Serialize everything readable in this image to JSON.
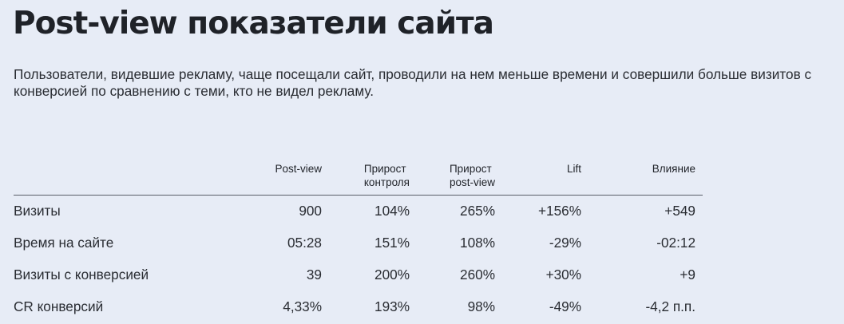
{
  "title": "Post-view показатели сайта",
  "description": "Пользователи, видевшие рекламу, чаще посещали сайт, проводили на нем меньше времени и совершили больше визитов с конверсией по сравнению с теми, кто не видел рекламу.",
  "table": {
    "columns": [
      "Post-view",
      "Прирост\nконтроля",
      "Прирост\npost-view",
      "Lift",
      "Влияние"
    ],
    "rows": [
      {
        "label": "Визиты",
        "values": [
          "900",
          "104%",
          "265%",
          "+156%",
          "+549"
        ]
      },
      {
        "label": "Время на сайте",
        "values": [
          "05:28",
          "151%",
          "108%",
          "-29%",
          "-02:12"
        ]
      },
      {
        "label": "Визиты с конверсией",
        "values": [
          "39",
          "200%",
          "260%",
          "+30%",
          "+9"
        ]
      },
      {
        "label": "CR конверсий",
        "values": [
          "4,33%",
          "193%",
          "98%",
          "-49%",
          "-4,2 п.п."
        ]
      }
    ]
  }
}
